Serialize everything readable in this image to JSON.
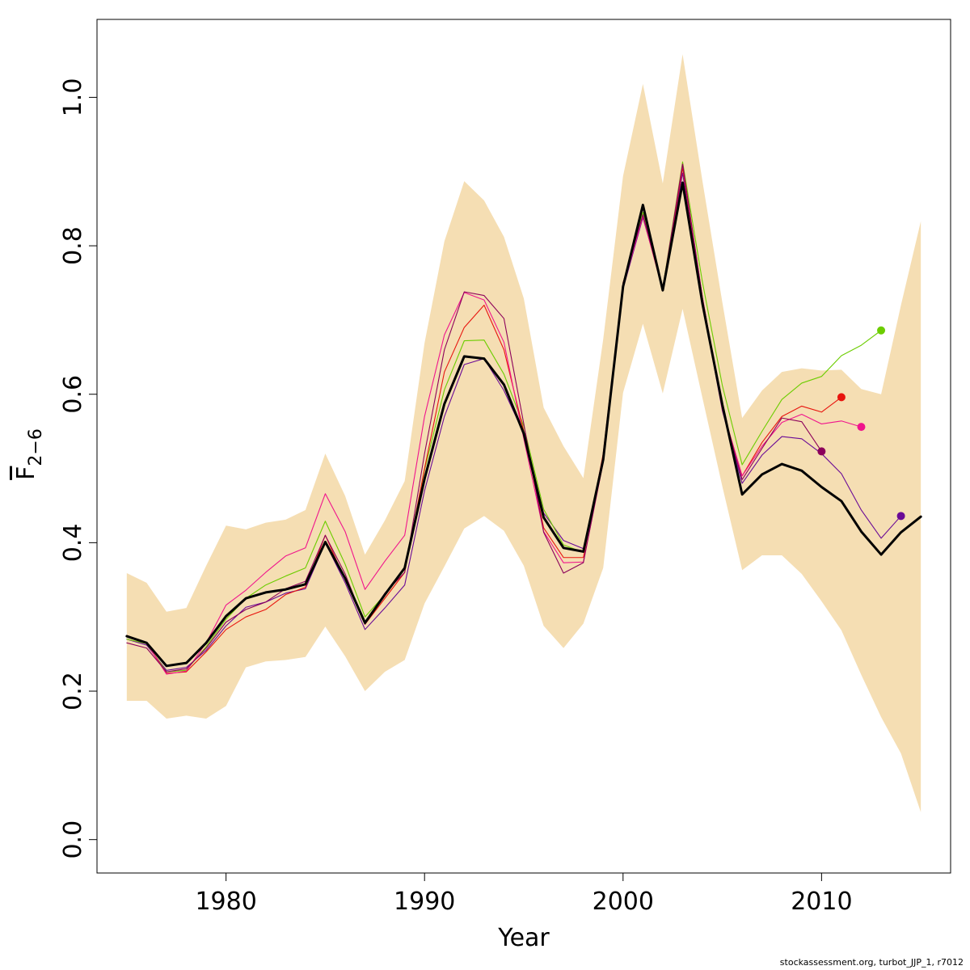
{
  "chart_data": {
    "type": "line",
    "xlabel": "Year",
    "ylabel_main": "F",
    "ylabel_sub": "2−6",
    "xlim": [
      1973.5,
      2016.5
    ],
    "ylim": [
      -0.045,
      1.105
    ],
    "x_ticks": [
      1980,
      1990,
      2000,
      2010
    ],
    "y_ticks": [
      0.0,
      0.2,
      0.4,
      0.6,
      0.8,
      1.0
    ],
    "y_tick_labels": [
      "0.0",
      "0.2",
      "0.4",
      "0.6",
      "0.8",
      "1.0"
    ],
    "grid": false,
    "legend": "none",
    "confidence_band": {
      "color": "#f5deb3",
      "x": [
        1975,
        1976,
        1977,
        1978,
        1979,
        1980,
        1981,
        1982,
        1983,
        1984,
        1985,
        1986,
        1987,
        1988,
        1989,
        1990,
        1991,
        1992,
        1993,
        1994,
        1995,
        1996,
        1997,
        1998,
        1999,
        2000,
        2001,
        2002,
        2003,
        2004,
        2005,
        2006,
        2007,
        2008,
        2009,
        2010,
        2011,
        2012,
        2013,
        2014,
        2015
      ],
      "upper": [
        0.359,
        0.346,
        0.307,
        0.312,
        0.369,
        0.423,
        0.418,
        0.427,
        0.431,
        0.444,
        0.52,
        0.463,
        0.384,
        0.43,
        0.483,
        0.669,
        0.806,
        0.887,
        0.861,
        0.812,
        0.729,
        0.582,
        0.53,
        0.487,
        0.674,
        0.894,
        1.018,
        0.884,
        1.058,
        0.887,
        0.724,
        0.568,
        0.605,
        0.63,
        0.635,
        0.632,
        0.633,
        0.607,
        0.6,
        0.72,
        0.833
      ],
      "lower": [
        0.187,
        0.187,
        0.163,
        0.167,
        0.163,
        0.18,
        0.232,
        0.24,
        0.242,
        0.246,
        0.287,
        0.247,
        0.2,
        0.226,
        0.242,
        0.318,
        0.368,
        0.419,
        0.436,
        0.416,
        0.369,
        0.288,
        0.258,
        0.291,
        0.366,
        0.602,
        0.695,
        0.601,
        0.715,
        0.595,
        0.476,
        0.363,
        0.383,
        0.383,
        0.358,
        0.321,
        0.282,
        0.222,
        0.165,
        0.116,
        0.037
      ]
    },
    "series": [
      {
        "color": "#6a0a96",
        "width": 1.1,
        "x": [
          1975,
          1976,
          1977,
          1978,
          1979,
          1980,
          1981,
          1982,
          1983,
          1984,
          1985,
          1986,
          1987,
          1988,
          1989,
          1990,
          1991,
          1992,
          1993,
          1994,
          1995,
          1996,
          1997,
          1998,
          1999,
          2000,
          2001,
          2002,
          2003,
          2004,
          2005,
          2006,
          2007,
          2008,
          2009,
          2010,
          2011,
          2012,
          2013,
          2014
        ],
        "y": [
          0.27,
          0.262,
          0.228,
          0.232,
          0.255,
          0.288,
          0.313,
          0.32,
          0.332,
          0.338,
          0.4,
          0.346,
          0.283,
          0.312,
          0.343,
          0.47,
          0.57,
          0.64,
          0.648,
          0.605,
          0.547,
          0.44,
          0.403,
          0.392,
          0.508,
          0.742,
          0.838,
          0.744,
          0.898,
          0.722,
          0.578,
          0.48,
          0.518,
          0.543,
          0.54,
          0.52,
          0.493,
          0.444,
          0.406,
          0.436
        ],
        "end_marker": true
      },
      {
        "color": "#6ccd00",
        "width": 1.1,
        "x": [
          1975,
          1976,
          1977,
          1978,
          1979,
          1980,
          1981,
          1982,
          1983,
          1984,
          1985,
          1986,
          1987,
          1988,
          1989,
          1990,
          1991,
          1992,
          1993,
          1994,
          1995,
          1996,
          1997,
          1998,
          1999,
          2000,
          2001,
          2002,
          2003,
          2004,
          2005,
          2006,
          2007,
          2008,
          2009,
          2010,
          2011,
          2012,
          2013
        ],
        "y": [
          0.27,
          0.264,
          0.226,
          0.228,
          0.26,
          0.297,
          0.325,
          0.343,
          0.355,
          0.366,
          0.429,
          0.371,
          0.3,
          0.33,
          0.364,
          0.498,
          0.606,
          0.672,
          0.673,
          0.627,
          0.557,
          0.445,
          0.397,
          0.387,
          0.508,
          0.75,
          0.845,
          0.743,
          0.913,
          0.751,
          0.612,
          0.505,
          0.55,
          0.593,
          0.615,
          0.624,
          0.652,
          0.666,
          0.686
        ],
        "end_marker": true
      },
      {
        "color": "#e8140e",
        "width": 1.1,
        "x": [
          1975,
          1976,
          1977,
          1978,
          1979,
          1980,
          1981,
          1982,
          1983,
          1984,
          1985,
          1986,
          1987,
          1988,
          1989,
          1990,
          1991,
          1992,
          1993,
          1994,
          1995,
          1996,
          1997,
          1998,
          1999,
          2000,
          2001,
          2002,
          2003,
          2004,
          2005,
          2006,
          2007,
          2008,
          2009,
          2010,
          2011
        ],
        "y": [
          0.275,
          0.265,
          0.224,
          0.226,
          0.253,
          0.283,
          0.3,
          0.31,
          0.33,
          0.34,
          0.41,
          0.35,
          0.29,
          0.325,
          0.36,
          0.5,
          0.63,
          0.69,
          0.72,
          0.66,
          0.55,
          0.42,
          0.38,
          0.38,
          0.52,
          0.75,
          0.84,
          0.74,
          0.905,
          0.73,
          0.58,
          0.49,
          0.535,
          0.57,
          0.584,
          0.576,
          0.596
        ],
        "end_marker": true
      },
      {
        "color": "#f0148c",
        "width": 1.1,
        "x": [
          1975,
          1976,
          1977,
          1978,
          1979,
          1980,
          1981,
          1982,
          1983,
          1984,
          1985,
          1986,
          1987,
          1988,
          1989,
          1990,
          1991,
          1992,
          1993,
          1994,
          1995,
          1996,
          1997,
          1998,
          1999,
          2000,
          2001,
          2002,
          2003,
          2004,
          2005,
          2006,
          2007,
          2008,
          2009,
          2010,
          2011,
          2012
        ],
        "y": [
          0.275,
          0.265,
          0.223,
          0.227,
          0.265,
          0.316,
          0.336,
          0.36,
          0.382,
          0.393,
          0.466,
          0.415,
          0.337,
          0.375,
          0.41,
          0.57,
          0.68,
          0.737,
          0.727,
          0.67,
          0.54,
          0.415,
          0.373,
          0.374,
          0.508,
          0.745,
          0.84,
          0.74,
          0.91,
          0.73,
          0.58,
          0.49,
          0.53,
          0.562,
          0.573,
          0.56,
          0.564,
          0.556
        ],
        "end_marker": true
      },
      {
        "color": "#8c005a",
        "width": 1.1,
        "x": [
          1975,
          1976,
          1977,
          1978,
          1979,
          1980,
          1981,
          1982,
          1983,
          1984,
          1985,
          1986,
          1987,
          1988,
          1989,
          1990,
          1991,
          1992,
          1993,
          1994,
          1995,
          1996,
          1997,
          1998,
          1999,
          2000,
          2001,
          2002,
          2003,
          2004,
          2005,
          2006,
          2007,
          2008,
          2009,
          2010
        ],
        "y": [
          0.265,
          0.258,
          0.226,
          0.23,
          0.258,
          0.293,
          0.31,
          0.32,
          0.338,
          0.348,
          0.41,
          0.358,
          0.29,
          0.332,
          0.36,
          0.52,
          0.66,
          0.738,
          0.733,
          0.702,
          0.56,
          0.414,
          0.359,
          0.373,
          0.51,
          0.75,
          0.842,
          0.742,
          0.91,
          0.73,
          0.58,
          0.485,
          0.527,
          0.568,
          0.563,
          0.523
        ],
        "end_marker": true
      },
      {
        "color": "#000000",
        "width": 3,
        "x": [
          1975,
          1976,
          1977,
          1978,
          1979,
          1980,
          1981,
          1982,
          1983,
          1984,
          1985,
          1986,
          1987,
          1988,
          1989,
          1990,
          1991,
          1992,
          1993,
          1994,
          1995,
          1996,
          1997,
          1998,
          1999,
          2000,
          2001,
          2002,
          2003,
          2004,
          2005,
          2006,
          2007,
          2008,
          2009,
          2010,
          2011,
          2012,
          2013,
          2014,
          2015
        ],
        "y": [
          0.274,
          0.265,
          0.234,
          0.238,
          0.265,
          0.301,
          0.325,
          0.333,
          0.337,
          0.344,
          0.401,
          0.352,
          0.292,
          0.33,
          0.366,
          0.486,
          0.587,
          0.651,
          0.648,
          0.613,
          0.547,
          0.434,
          0.393,
          0.388,
          0.512,
          0.745,
          0.855,
          0.74,
          0.885,
          0.722,
          0.586,
          0.465,
          0.492,
          0.506,
          0.497,
          0.475,
          0.456,
          0.415,
          0.384,
          0.414,
          0.435
        ],
        "end_marker": false
      }
    ]
  },
  "footer": "stockassessment.org, turbot_JJP_1, r7012"
}
